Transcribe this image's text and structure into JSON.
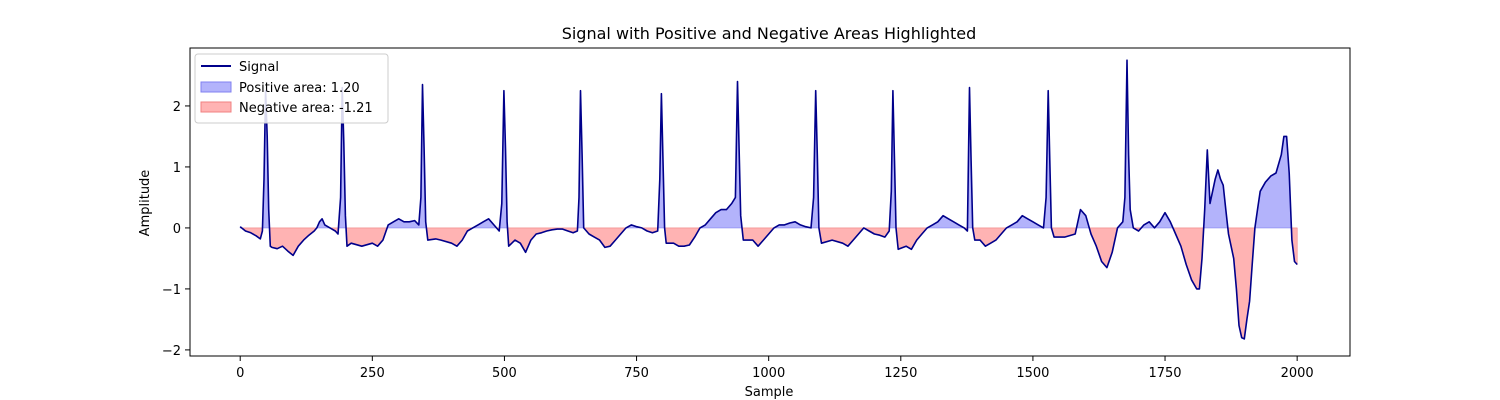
{
  "chart_data": {
    "type": "line",
    "title": "Signal with Positive and Negative Areas Highlighted",
    "xlabel": "Sample",
    "ylabel": "Amplitude",
    "xlim": [
      -95,
      2100
    ],
    "ylim": [
      -2.1,
      2.95
    ],
    "xticks": [
      0,
      250,
      500,
      750,
      1000,
      1250,
      1500,
      1750,
      2000
    ],
    "yticks": [
      -2,
      -1,
      0,
      1,
      2
    ],
    "grid": false,
    "legend_position": "top-left",
    "colors": {
      "signal": "#00008b",
      "positive_fill": "#b3b3fb",
      "positive_edge": "#8080f0",
      "negative_fill": "#ffb3b3",
      "negative_edge": "#f08080"
    },
    "legend": [
      {
        "key": "signal",
        "label": "Signal"
      },
      {
        "key": "positive",
        "label": "Positive area: 1.20"
      },
      {
        "key": "negative",
        "label": "Negative area: -1.21"
      }
    ],
    "series": [
      {
        "name": "Signal",
        "points": [
          [
            0,
            0.02
          ],
          [
            10,
            -0.05
          ],
          [
            20,
            -0.08
          ],
          [
            30,
            -0.13
          ],
          [
            38,
            -0.18
          ],
          [
            42,
            -0.05
          ],
          [
            45,
            0.8
          ],
          [
            48,
            2.25
          ],
          [
            51,
            1.5
          ],
          [
            54,
            0.3
          ],
          [
            57,
            -0.3
          ],
          [
            60,
            -0.32
          ],
          [
            70,
            -0.34
          ],
          [
            80,
            -0.3
          ],
          [
            90,
            -0.38
          ],
          [
            100,
            -0.45
          ],
          [
            110,
            -0.3
          ],
          [
            120,
            -0.2
          ],
          [
            130,
            -0.12
          ],
          [
            140,
            -0.05
          ],
          [
            145,
            0.0
          ],
          [
            150,
            0.1
          ],
          [
            155,
            0.15
          ],
          [
            160,
            0.05
          ],
          [
            170,
            0.0
          ],
          [
            180,
            -0.05
          ],
          [
            185,
            -0.1
          ],
          [
            190,
            0.5
          ],
          [
            193,
            2.3
          ],
          [
            196,
            1.4
          ],
          [
            199,
            0.2
          ],
          [
            202,
            -0.3
          ],
          [
            210,
            -0.25
          ],
          [
            230,
            -0.3
          ],
          [
            250,
            -0.25
          ],
          [
            260,
            -0.3
          ],
          [
            270,
            -0.2
          ],
          [
            280,
            0.05
          ],
          [
            290,
            0.1
          ],
          [
            300,
            0.15
          ],
          [
            310,
            0.1
          ],
          [
            320,
            0.1
          ],
          [
            330,
            0.12
          ],
          [
            338,
            0.05
          ],
          [
            342,
            0.5
          ],
          [
            345,
            2.35
          ],
          [
            348,
            1.3
          ],
          [
            351,
            0.1
          ],
          [
            355,
            -0.2
          ],
          [
            370,
            -0.18
          ],
          [
            380,
            -0.2
          ],
          [
            400,
            -0.25
          ],
          [
            410,
            -0.3
          ],
          [
            420,
            -0.2
          ],
          [
            430,
            -0.05
          ],
          [
            440,
            0.0
          ],
          [
            450,
            0.05
          ],
          [
            460,
            0.1
          ],
          [
            470,
            0.15
          ],
          [
            480,
            0.05
          ],
          [
            490,
            -0.05
          ],
          [
            495,
            0.4
          ],
          [
            499,
            2.25
          ],
          [
            502,
            1.3
          ],
          [
            505,
            0.1
          ],
          [
            508,
            -0.3
          ],
          [
            520,
            -0.2
          ],
          [
            530,
            -0.25
          ],
          [
            540,
            -0.4
          ],
          [
            550,
            -0.2
          ],
          [
            560,
            -0.1
          ],
          [
            570,
            -0.08
          ],
          [
            580,
            -0.05
          ],
          [
            590,
            -0.03
          ],
          [
            600,
            -0.02
          ],
          [
            610,
            -0.02
          ],
          [
            620,
            -0.05
          ],
          [
            630,
            -0.08
          ],
          [
            638,
            -0.05
          ],
          [
            641,
            0.5
          ],
          [
            644,
            2.25
          ],
          [
            647,
            1.2
          ],
          [
            650,
            0.0
          ],
          [
            660,
            -0.1
          ],
          [
            670,
            -0.15
          ],
          [
            680,
            -0.2
          ],
          [
            690,
            -0.32
          ],
          [
            700,
            -0.3
          ],
          [
            710,
            -0.2
          ],
          [
            720,
            -0.1
          ],
          [
            730,
            0.0
          ],
          [
            740,
            0.05
          ],
          [
            750,
            0.02
          ],
          [
            760,
            0.0
          ],
          [
            770,
            -0.05
          ],
          [
            780,
            -0.08
          ],
          [
            790,
            -0.05
          ],
          [
            794,
            0.8
          ],
          [
            797,
            2.2
          ],
          [
            800,
            1.1
          ],
          [
            803,
            0.0
          ],
          [
            806,
            -0.25
          ],
          [
            820,
            -0.25
          ],
          [
            830,
            -0.3
          ],
          [
            840,
            -0.3
          ],
          [
            850,
            -0.28
          ],
          [
            860,
            -0.15
          ],
          [
            870,
            0.0
          ],
          [
            880,
            0.05
          ],
          [
            890,
            0.15
          ],
          [
            900,
            0.25
          ],
          [
            910,
            0.3
          ],
          [
            920,
            0.3
          ],
          [
            930,
            0.4
          ],
          [
            937,
            0.5
          ],
          [
            941,
            2.4
          ],
          [
            944,
            1.3
          ],
          [
            947,
            0.2
          ],
          [
            952,
            -0.2
          ],
          [
            960,
            -0.2
          ],
          [
            970,
            -0.2
          ],
          [
            980,
            -0.3
          ],
          [
            990,
            -0.2
          ],
          [
            1000,
            -0.1
          ],
          [
            1010,
            0.0
          ],
          [
            1020,
            0.05
          ],
          [
            1030,
            0.05
          ],
          [
            1040,
            0.08
          ],
          [
            1050,
            0.1
          ],
          [
            1060,
            0.05
          ],
          [
            1070,
            0.02
          ],
          [
            1080,
            0.0
          ],
          [
            1085,
            0.5
          ],
          [
            1089,
            2.25
          ],
          [
            1092,
            1.2
          ],
          [
            1095,
            0.0
          ],
          [
            1100,
            -0.25
          ],
          [
            1120,
            -0.2
          ],
          [
            1140,
            -0.25
          ],
          [
            1150,
            -0.3
          ],
          [
            1160,
            -0.2
          ],
          [
            1170,
            -0.1
          ],
          [
            1180,
            0.0
          ],
          [
            1190,
            -0.05
          ],
          [
            1200,
            -0.1
          ],
          [
            1210,
            -0.12
          ],
          [
            1220,
            -0.15
          ],
          [
            1228,
            -0.05
          ],
          [
            1232,
            0.6
          ],
          [
            1235,
            2.25
          ],
          [
            1238,
            1.1
          ],
          [
            1241,
            0.0
          ],
          [
            1245,
            -0.35
          ],
          [
            1260,
            -0.3
          ],
          [
            1270,
            -0.35
          ],
          [
            1280,
            -0.2
          ],
          [
            1290,
            -0.1
          ],
          [
            1300,
            0.0
          ],
          [
            1310,
            0.05
          ],
          [
            1320,
            0.1
          ],
          [
            1330,
            0.2
          ],
          [
            1340,
            0.15
          ],
          [
            1350,
            0.1
          ],
          [
            1360,
            0.05
          ],
          [
            1370,
            0.0
          ],
          [
            1376,
            -0.05
          ],
          [
            1380,
            2.3
          ],
          [
            1383,
            1.1
          ],
          [
            1386,
            0.0
          ],
          [
            1390,
            -0.2
          ],
          [
            1400,
            -0.2
          ],
          [
            1410,
            -0.3
          ],
          [
            1420,
            -0.25
          ],
          [
            1430,
            -0.2
          ],
          [
            1440,
            -0.1
          ],
          [
            1450,
            0.0
          ],
          [
            1460,
            0.05
          ],
          [
            1470,
            0.1
          ],
          [
            1480,
            0.2
          ],
          [
            1490,
            0.15
          ],
          [
            1500,
            0.1
          ],
          [
            1510,
            0.05
          ],
          [
            1520,
            0.0
          ],
          [
            1525,
            0.5
          ],
          [
            1529,
            2.25
          ],
          [
            1532,
            1.1
          ],
          [
            1535,
            0.0
          ],
          [
            1540,
            -0.15
          ],
          [
            1560,
            -0.15
          ],
          [
            1580,
            -0.1
          ],
          [
            1590,
            0.3
          ],
          [
            1600,
            0.2
          ],
          [
            1610,
            -0.1
          ],
          [
            1620,
            -0.3
          ],
          [
            1630,
            -0.55
          ],
          [
            1640,
            -0.65
          ],
          [
            1650,
            -0.4
          ],
          [
            1660,
            0.0
          ],
          [
            1670,
            0.1
          ],
          [
            1674,
            0.5
          ],
          [
            1678,
            2.75
          ],
          [
            1681,
            1.2
          ],
          [
            1684,
            0.3
          ],
          [
            1690,
            0.0
          ],
          [
            1700,
            -0.05
          ],
          [
            1710,
            0.05
          ],
          [
            1720,
            0.1
          ],
          [
            1730,
            0.0
          ],
          [
            1740,
            0.1
          ],
          [
            1750,
            0.25
          ],
          [
            1760,
            0.1
          ],
          [
            1770,
            -0.1
          ],
          [
            1780,
            -0.3
          ],
          [
            1790,
            -0.6
          ],
          [
            1800,
            -0.85
          ],
          [
            1810,
            -1.0
          ],
          [
            1815,
            -1.0
          ],
          [
            1820,
            -0.5
          ],
          [
            1825,
            0.3
          ],
          [
            1830,
            1.28
          ],
          [
            1835,
            0.4
          ],
          [
            1840,
            0.6
          ],
          [
            1845,
            0.8
          ],
          [
            1850,
            0.95
          ],
          [
            1855,
            0.8
          ],
          [
            1860,
            0.7
          ],
          [
            1865,
            0.3
          ],
          [
            1870,
            -0.1
          ],
          [
            1875,
            -0.3
          ],
          [
            1880,
            -0.5
          ],
          [
            1885,
            -1.0
          ],
          [
            1890,
            -1.6
          ],
          [
            1895,
            -1.8
          ],
          [
            1900,
            -1.82
          ],
          [
            1905,
            -1.5
          ],
          [
            1910,
            -1.2
          ],
          [
            1915,
            -0.6
          ],
          [
            1920,
            0.0
          ],
          [
            1925,
            0.3
          ],
          [
            1930,
            0.6
          ],
          [
            1940,
            0.75
          ],
          [
            1950,
            0.85
          ],
          [
            1960,
            0.9
          ],
          [
            1970,
            1.2
          ],
          [
            1975,
            1.5
          ],
          [
            1980,
            1.5
          ],
          [
            1985,
            0.9
          ],
          [
            1990,
            -0.2
          ],
          [
            1995,
            -0.55
          ],
          [
            2000,
            -0.6
          ]
        ]
      }
    ]
  }
}
